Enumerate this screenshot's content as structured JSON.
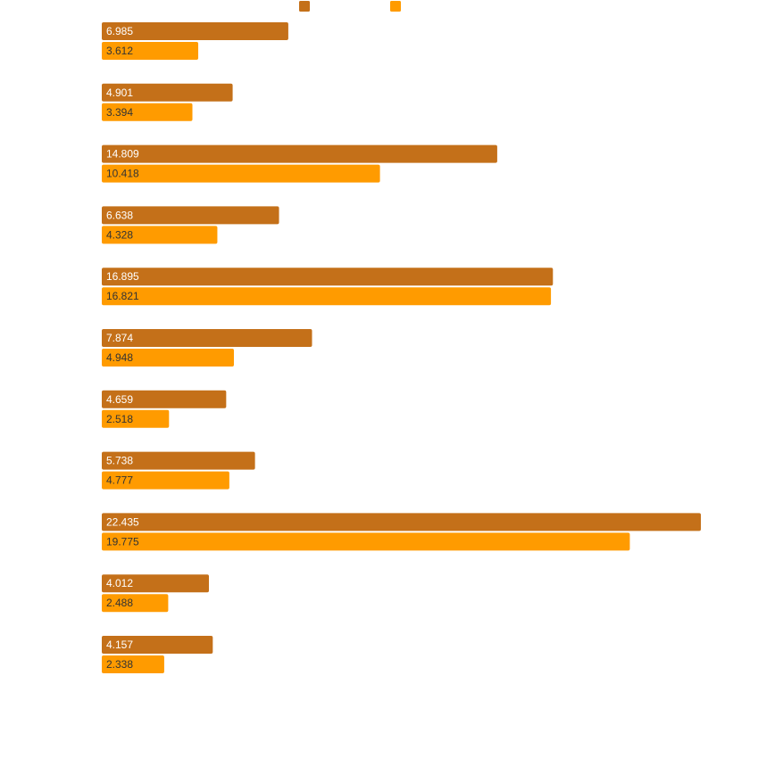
{
  "chart_data": {
    "type": "bar",
    "orientation": "horizontal",
    "grouped": true,
    "categories": [
      "",
      "",
      "",
      "",
      "",
      "",
      "",
      "",
      "",
      "",
      ""
    ],
    "series": [
      {
        "color": "#c47019",
        "label_color": "#ffffff",
        "values": [
          6.985,
          4.901,
          14.809,
          6.638,
          16.895,
          7.874,
          4.659,
          5.738,
          22.435,
          4.012,
          4.157
        ]
      },
      {
        "color": "#ff9b00",
        "label_color": "#333333",
        "values": [
          3.612,
          3.394,
          10.418,
          4.328,
          16.821,
          4.948,
          2.518,
          4.777,
          19.775,
          2.488,
          2.338
        ]
      }
    ],
    "value_labels": [
      [
        "6.985",
        "4.901",
        "14.809",
        "6.638",
        "16.895",
        "7.874",
        "4.659",
        "5.738",
        "22.435",
        "4.012",
        "4.157"
      ],
      [
        "3.612",
        "3.394",
        "10.418",
        "4.328",
        "16.821",
        "4.948",
        "2.518",
        "4.777",
        "19.775",
        "2.488",
        "2.338"
      ]
    ],
    "xlim": [
      0,
      22.435
    ],
    "grid": false,
    "legend": {
      "position": "top",
      "show_text": false
    }
  }
}
